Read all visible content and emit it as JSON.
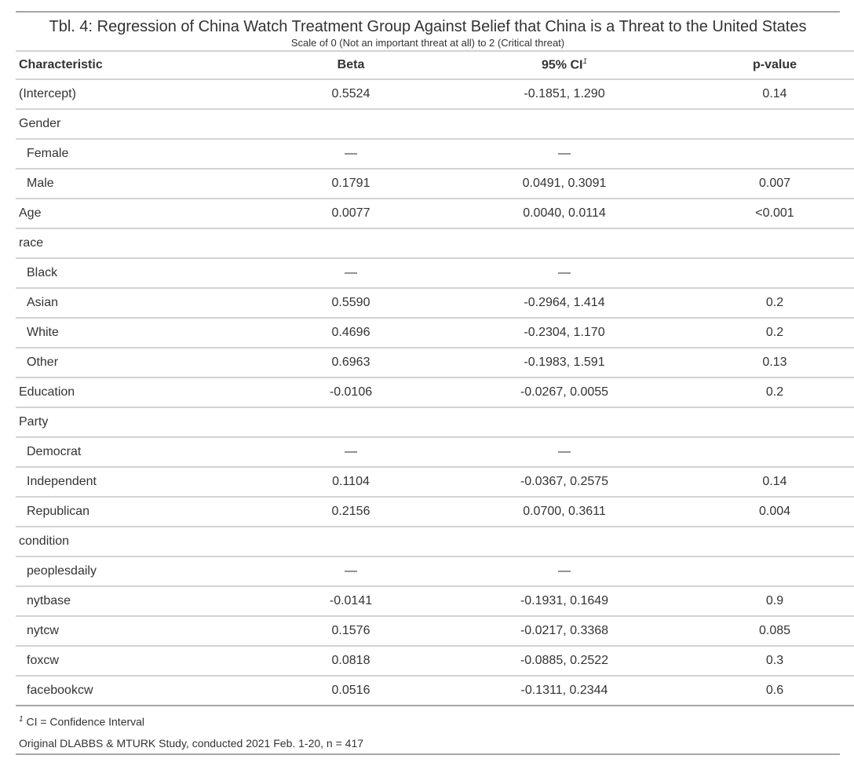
{
  "title": "Tbl. 4: Regression of China Watch Treatment Group Against Belief that China is a Threat to the United States",
  "subtitle": "Scale of 0 (Not an important threat at all) to 2 (Critical threat)",
  "columns": {
    "characteristic": "Characteristic",
    "beta": "Beta",
    "ci": "95% CI",
    "ci_mark": "1",
    "pvalue": "p-value"
  },
  "rows": [
    {
      "label": "(Intercept)",
      "beta": "0.5524",
      "ci": "-0.1851, 1.290",
      "p": "0.14",
      "indent": false
    },
    {
      "label": "Gender",
      "beta": "",
      "ci": "",
      "p": "",
      "indent": false
    },
    {
      "label": "Female",
      "beta": "—",
      "ci": "—",
      "p": "",
      "indent": true
    },
    {
      "label": "Male",
      "beta": "0.1791",
      "ci": "0.0491, 0.3091",
      "p": "0.007",
      "indent": true
    },
    {
      "label": "Age",
      "beta": "0.0077",
      "ci": "0.0040, 0.0114",
      "p": "<0.001",
      "indent": false
    },
    {
      "label": "race",
      "beta": "",
      "ci": "",
      "p": "",
      "indent": false
    },
    {
      "label": "Black",
      "beta": "—",
      "ci": "—",
      "p": "",
      "indent": true
    },
    {
      "label": "Asian",
      "beta": "0.5590",
      "ci": "-0.2964, 1.414",
      "p": "0.2",
      "indent": true
    },
    {
      "label": "White",
      "beta": "0.4696",
      "ci": "-0.2304, 1.170",
      "p": "0.2",
      "indent": true
    },
    {
      "label": "Other",
      "beta": "0.6963",
      "ci": "-0.1983, 1.591",
      "p": "0.13",
      "indent": true
    },
    {
      "label": "Education",
      "beta": "-0.0106",
      "ci": "-0.0267, 0.0055",
      "p": "0.2",
      "indent": false
    },
    {
      "label": "Party",
      "beta": "",
      "ci": "",
      "p": "",
      "indent": false
    },
    {
      "label": "Democrat",
      "beta": "—",
      "ci": "—",
      "p": "",
      "indent": true
    },
    {
      "label": "Independent",
      "beta": "0.1104",
      "ci": "-0.0367, 0.2575",
      "p": "0.14",
      "indent": true
    },
    {
      "label": "Republican",
      "beta": "0.2156",
      "ci": "0.0700, 0.3611",
      "p": "0.004",
      "indent": true
    },
    {
      "label": "condition",
      "beta": "",
      "ci": "",
      "p": "",
      "indent": false
    },
    {
      "label": "peoplesdaily",
      "beta": "—",
      "ci": "—",
      "p": "",
      "indent": true
    },
    {
      "label": "nytbase",
      "beta": "-0.0141",
      "ci": "-0.1931, 0.1649",
      "p": "0.9",
      "indent": true
    },
    {
      "label": "nytcw",
      "beta": "0.1576",
      "ci": "-0.0217, 0.3368",
      "p": "0.085",
      "indent": true
    },
    {
      "label": "foxcw",
      "beta": "0.0818",
      "ci": "-0.0885, 0.2522",
      "p": "0.3",
      "indent": true
    },
    {
      "label": "facebookcw",
      "beta": "0.0516",
      "ci": "-0.1311, 0.2344",
      "p": "0.6",
      "indent": true
    }
  ],
  "footnote": {
    "mark": "1",
    "text": "CI = Confidence Interval"
  },
  "source_note": "Original DLABBS & MTURK Study, conducted 2021 Feb. 1-20, n = 417"
}
